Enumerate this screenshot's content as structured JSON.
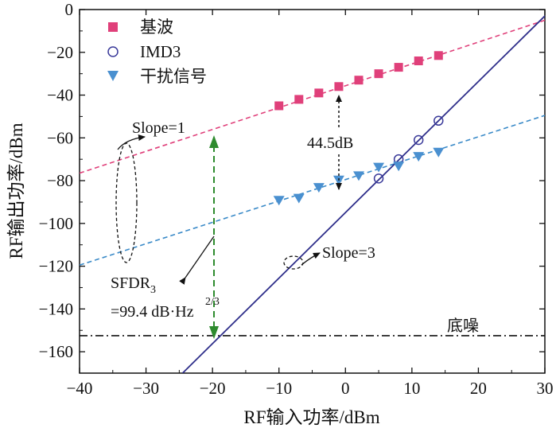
{
  "chart_data": {
    "type": "scatter",
    "xlabel": "RF输入功率/dBm",
    "ylabel": "RF输出功率/dBm",
    "xlim": [
      -40,
      30
    ],
    "ylim": [
      -170,
      0
    ],
    "xticks": [
      -40,
      -30,
      -20,
      -10,
      0,
      10,
      20,
      30
    ],
    "yticks": [
      0,
      -20,
      -40,
      -60,
      -80,
      -100,
      -120,
      -140,
      -160
    ],
    "xtick_labels": [
      "−40",
      "−30",
      "−20",
      "−10",
      "0",
      "10",
      "20",
      "30"
    ],
    "ytick_labels": [
      "0",
      "−20",
      "−40",
      "−60",
      "−80",
      "−100",
      "−120",
      "−140",
      "−160"
    ],
    "legend_position": "top-left",
    "grid": false,
    "series": [
      {
        "name": "基波",
        "marker": "square",
        "color": "#e0407a",
        "x": [
          -10,
          -7,
          -4,
          -1,
          2,
          5,
          8,
          11,
          14
        ],
        "y": [
          -45,
          -42,
          -39,
          -36,
          -33,
          -30,
          -27,
          -24,
          -21.5
        ]
      },
      {
        "name": "IMD3",
        "marker": "circle-open",
        "color": "#3a3a9a",
        "x": [
          5,
          8,
          11,
          14
        ],
        "y": [
          -79,
          -70,
          -61,
          -52
        ]
      },
      {
        "name": "干扰信号",
        "marker": "triangle-down",
        "color": "#4a90d0",
        "x": [
          -10,
          -7,
          -4,
          -1,
          2,
          5,
          8,
          11,
          14
        ],
        "y": [
          -89,
          -88,
          -83,
          -79.5,
          -77.5,
          -73.5,
          -73,
          -68.5,
          -66.5
        ]
      }
    ],
    "fit_lines": [
      {
        "label": "fundamental-fit",
        "style": "dashed",
        "color": "#e0407a",
        "x": [
          -40,
          30
        ],
        "y": [
          -76.5,
          -5
        ]
      },
      {
        "label": "interference-fit",
        "style": "dashed",
        "color": "#3a8ac8",
        "x": [
          -40,
          30
        ],
        "y": [
          -119.5,
          -49.5
        ]
      },
      {
        "label": "imd3-fit",
        "style": "solid",
        "color": "#2e2e8a",
        "x": [
          -24.5,
          30
        ],
        "y": [
          -170,
          -3
        ]
      },
      {
        "label": "noise-floor",
        "style": "dashdot",
        "color": "#111111",
        "x": [
          -40,
          30
        ],
        "y": [
          -152.5,
          -152.5
        ]
      }
    ],
    "annotations": {
      "slope1": "Slope=1",
      "slope3": "Slope=3",
      "delta": "44.5dB",
      "sfdr_main": "SFDR",
      "sfdr_sub": "3",
      "sfdr_value": "=99.4 dB·Hz",
      "sfdr_exp": "2/3",
      "noise_floor": "底噪"
    }
  }
}
